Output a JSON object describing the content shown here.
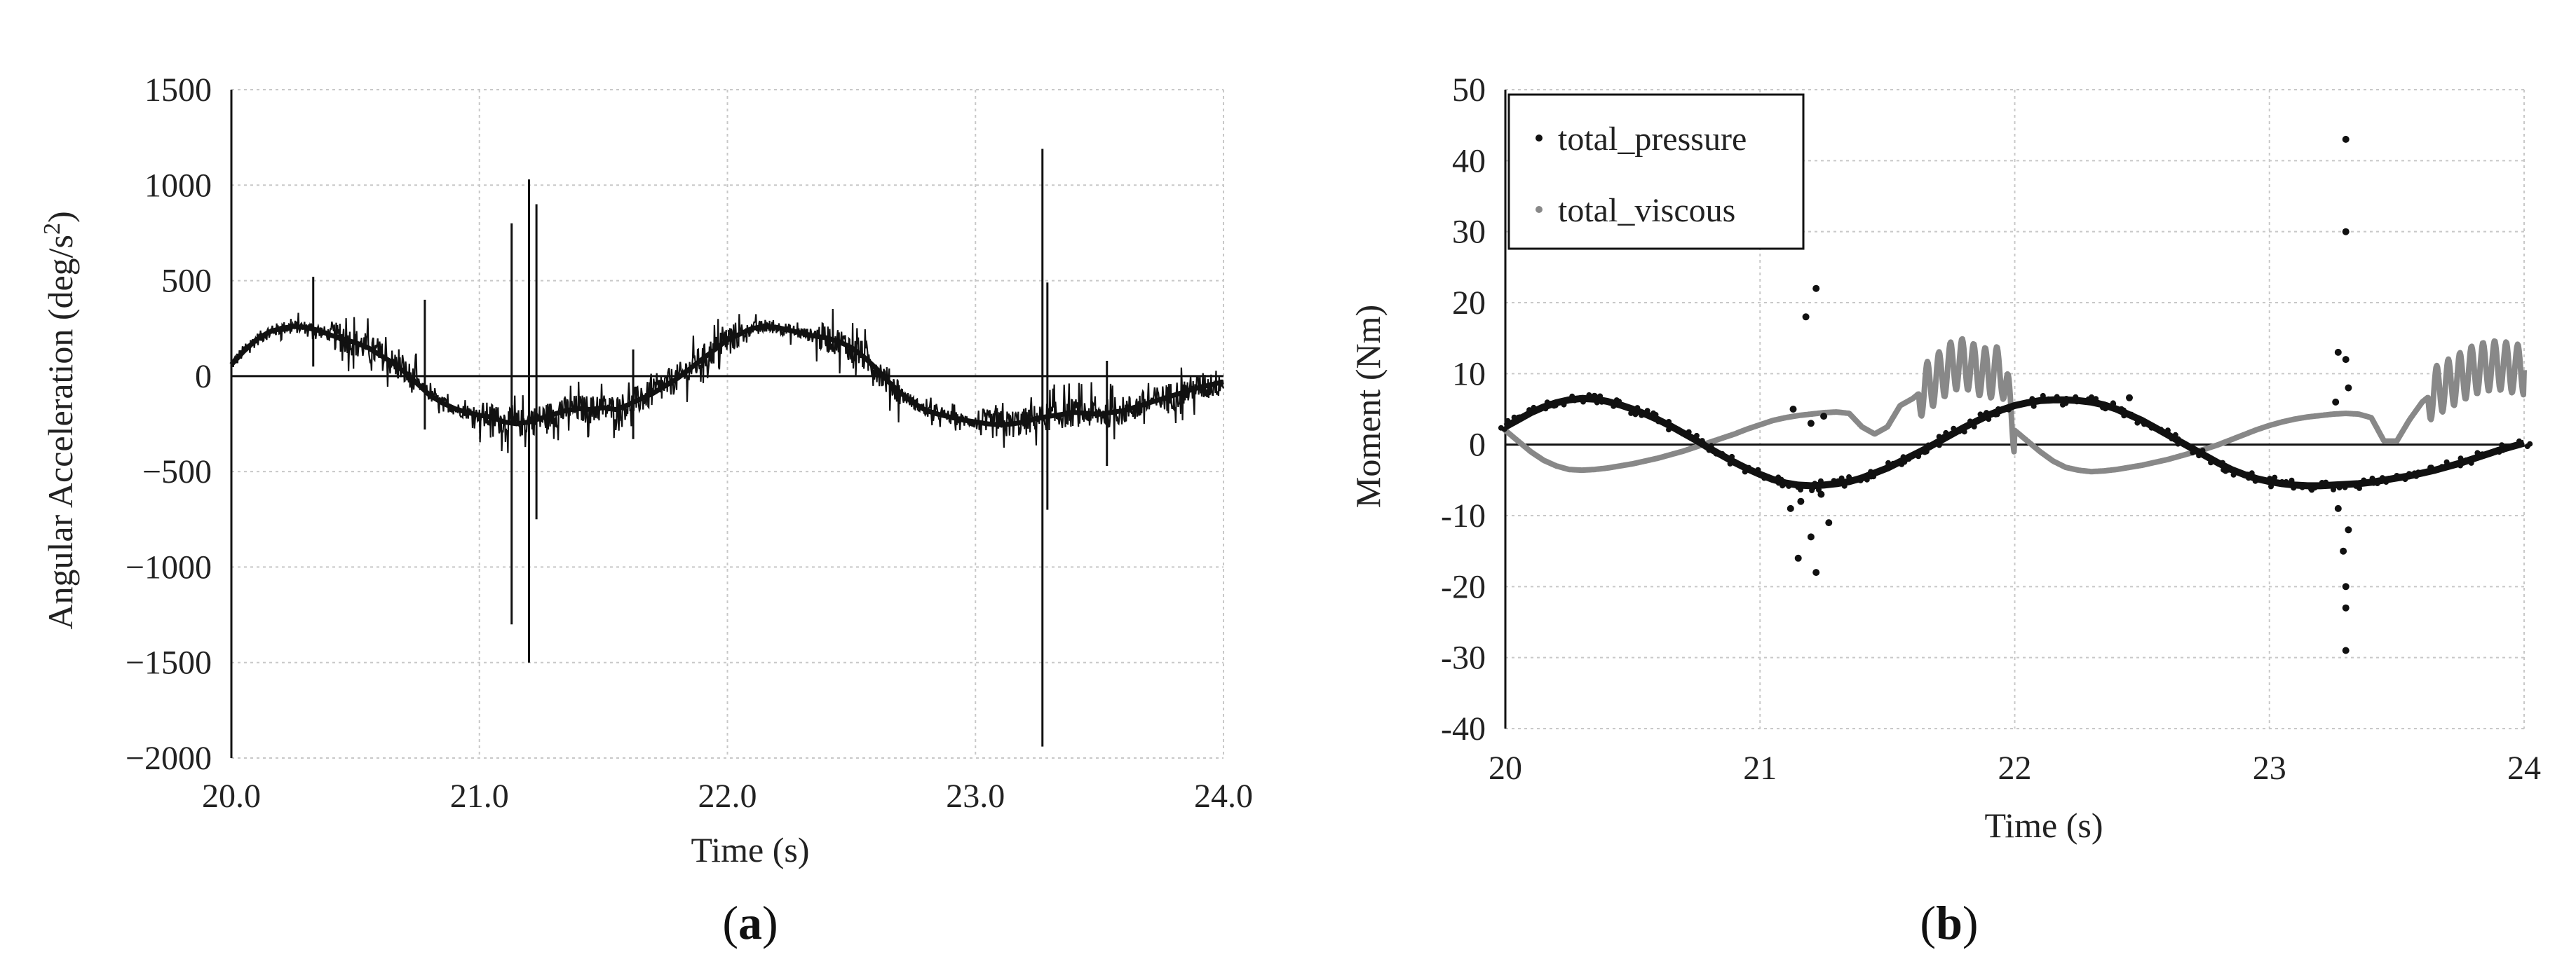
{
  "chart_data": [
    {
      "id": "a",
      "type": "line",
      "panel_label": "(a)",
      "panel_letter": "a",
      "xlabel": "Time (s)",
      "ylabel": "Angular Acceleration (deg/s²)",
      "xlim": [
        20.0,
        24.0
      ],
      "ylim": [
        -2000,
        1500
      ],
      "xticks": [
        20.0,
        21.0,
        22.0,
        23.0,
        24.0
      ],
      "xtick_labels": [
        "20.0",
        "21.0",
        "22.0",
        "23.0",
        "24.0"
      ],
      "yticks": [
        1500,
        1000,
        500,
        0,
        -500,
        -1000,
        -1500,
        -2000
      ],
      "ytick_labels": [
        "1500",
        "1000",
        "500",
        "0",
        "−500",
        "−1000",
        "−1500",
        "−2000"
      ],
      "grid": true,
      "series": [
        {
          "name": "angular_acceleration",
          "color": "#111111",
          "x": [
            20.0,
            20.05,
            20.1,
            20.15,
            20.2,
            20.25,
            20.3,
            20.35,
            20.4,
            20.45,
            20.5,
            20.55,
            20.6,
            20.65,
            20.7,
            20.75,
            20.8,
            20.85,
            20.9,
            20.95,
            21.0,
            21.05,
            21.1,
            21.15,
            21.2,
            21.25,
            21.3,
            21.35,
            21.4,
            21.45,
            21.5,
            21.55,
            21.6,
            21.65,
            21.7,
            21.75,
            21.8,
            21.85,
            21.9,
            21.95,
            22.0,
            22.05,
            22.1,
            22.15,
            22.2,
            22.25,
            22.3,
            22.35,
            22.4,
            22.45,
            22.5,
            22.55,
            22.6,
            22.65,
            22.7,
            22.75,
            22.8,
            22.85,
            22.9,
            22.95,
            23.0,
            23.05,
            23.1,
            23.15,
            23.2,
            23.25,
            23.3,
            23.35,
            23.4,
            23.45,
            23.5,
            23.55,
            23.6,
            23.65,
            23.7,
            23.75,
            23.8,
            23.85,
            23.9,
            23.95,
            24.0
          ],
          "values": [
            60,
            130,
            190,
            230,
            250,
            260,
            255,
            240,
            215,
            195,
            175,
            150,
            110,
            70,
            20,
            -40,
            -100,
            -140,
            -170,
            -190,
            -205,
            -215,
            -240,
            -250,
            -240,
            -220,
            -200,
            -180,
            -170,
            -175,
            -165,
            -175,
            -150,
            -120,
            -90,
            -50,
            -10,
            40,
            90,
            140,
            190,
            220,
            250,
            260,
            255,
            240,
            225,
            210,
            200,
            180,
            150,
            100,
            40,
            -30,
            -90,
            -140,
            -180,
            -200,
            -215,
            -230,
            -240,
            -250,
            -255,
            -250,
            -240,
            -220,
            -210,
            -200,
            -190,
            -195,
            -200,
            -190,
            -180,
            -160,
            -140,
            -120,
            -100,
            -80,
            -60,
            -45,
            -30
          ]
        }
      ],
      "spikes": [
        {
          "x": 20.0,
          "ymin": -2000,
          "ymax": 1500
        },
        {
          "x": 20.33,
          "ymin": 50,
          "ymax": 520
        },
        {
          "x": 20.78,
          "ymin": -280,
          "ymax": 400
        },
        {
          "x": 21.13,
          "ymin": -1300,
          "ymax": 800
        },
        {
          "x": 21.2,
          "ymin": -1500,
          "ymax": 1030
        },
        {
          "x": 21.23,
          "ymin": -750,
          "ymax": 900
        },
        {
          "x": 21.62,
          "ymin": -330,
          "ymax": 140
        },
        {
          "x": 23.27,
          "ymin": -1940,
          "ymax": 1190
        },
        {
          "x": 23.29,
          "ymin": -700,
          "ymax": 490
        },
        {
          "x": 23.53,
          "ymin": -470,
          "ymax": 80
        }
      ]
    },
    {
      "id": "b",
      "type": "scatter",
      "panel_label": "(b)",
      "panel_letter": "b",
      "xlabel": "Time (s)",
      "ylabel": "Moment (Nm)",
      "xlim": [
        20,
        24
      ],
      "ylim": [
        -40,
        50
      ],
      "xticks": [
        20,
        21,
        22,
        23,
        24
      ],
      "xtick_labels": [
        "20",
        "21",
        "22",
        "23",
        "24"
      ],
      "yticks": [
        50,
        40,
        30,
        20,
        10,
        0,
        -10,
        -20,
        -30,
        -40
      ],
      "ytick_labels": [
        "50",
        "40",
        "30",
        "20",
        "10",
        "0",
        "-10",
        "-20",
        "-30",
        "-40"
      ],
      "grid": true,
      "legend_position": "top-left",
      "series": [
        {
          "name": "total_pressure",
          "color": "#111111",
          "x": [
            20.0,
            20.05,
            20.1,
            20.15,
            20.2,
            20.25,
            20.3,
            20.35,
            20.4,
            20.45,
            20.5,
            20.55,
            20.6,
            20.65,
            20.7,
            20.75,
            20.8,
            20.85,
            20.9,
            20.95,
            21.0,
            21.05,
            21.1,
            21.15,
            21.2,
            21.25,
            21.3,
            21.35,
            21.4,
            21.45,
            21.5,
            21.55,
            21.6,
            21.65,
            21.7,
            21.75,
            21.8,
            21.85,
            21.9,
            21.95,
            22.0,
            22.05,
            22.1,
            22.15,
            22.2,
            22.25,
            22.3,
            22.35,
            22.4,
            22.45,
            22.5,
            22.55,
            22.6,
            22.65,
            22.7,
            22.75,
            22.8,
            22.85,
            22.9,
            22.95,
            23.0,
            23.05,
            23.1,
            23.15,
            23.2,
            23.25,
            23.3,
            23.35,
            23.4,
            23.45,
            23.5,
            23.55,
            23.6,
            23.65,
            23.7,
            23.75,
            23.8,
            23.85,
            23.9,
            23.95,
            24.0
          ],
          "values": [
            2.5,
            3.5,
            4.5,
            5.3,
            5.9,
            6.3,
            6.5,
            6.4,
            6.1,
            5.6,
            5.0,
            4.3,
            3.5,
            2.6,
            1.6,
            0.6,
            -0.5,
            -1.5,
            -2.5,
            -3.4,
            -4.2,
            -4.9,
            -5.4,
            -5.7,
            -5.8,
            -5.7,
            -5.5,
            -5.2,
            -4.7,
            -4.0,
            -3.3,
            -2.4,
            -1.5,
            -0.6,
            0.4,
            1.4,
            2.4,
            3.3,
            4.2,
            4.9,
            5.5,
            5.9,
            6.2,
            6.3,
            6.3,
            6.2,
            6.0,
            5.6,
            5.0,
            4.2,
            3.4,
            2.4,
            1.4,
            0.4,
            -0.6,
            -1.6,
            -2.6,
            -3.5,
            -4.2,
            -4.8,
            -5.2,
            -5.5,
            -5.7,
            -5.8,
            -5.8,
            -5.7,
            -5.6,
            -5.5,
            -5.3,
            -5.0,
            -4.7,
            -4.4,
            -4.0,
            -3.6,
            -3.1,
            -2.6,
            -2.0,
            -1.4,
            -0.8,
            -0.3,
            0.2
          ]
        },
        {
          "name": "total_viscous",
          "color": "#888888",
          "x": [
            20.0,
            20.05,
            20.1,
            20.15,
            20.2,
            20.25,
            20.3,
            20.35,
            20.4,
            20.45,
            20.5,
            20.55,
            20.6,
            20.65,
            20.7,
            20.75,
            20.8,
            20.85,
            20.9,
            20.95,
            21.0,
            21.05,
            21.1,
            21.15,
            21.2,
            21.25,
            21.3,
            21.35,
            21.4,
            21.45,
            21.5,
            21.55,
            21.6,
            21.65,
            21.7,
            21.75,
            21.8,
            21.85,
            21.9,
            21.95,
            22.0,
            22.05,
            22.1,
            22.15,
            22.2,
            22.25,
            22.3,
            22.35,
            22.4,
            22.45,
            22.5,
            22.55,
            22.6,
            22.65,
            22.7,
            22.75,
            22.8,
            22.85,
            22.9,
            22.95,
            23.0,
            23.05,
            23.1,
            23.15,
            23.2,
            23.25,
            23.3,
            23.35,
            23.4,
            23.45,
            23.5,
            23.55,
            23.6,
            23.65,
            23.7,
            23.75,
            23.8,
            23.85,
            23.9,
            23.95,
            24.0
          ],
          "values": [
            2.0,
            0.5,
            -1.0,
            -2.2,
            -3.0,
            -3.5,
            -3.6,
            -3.5,
            -3.3,
            -3.0,
            -2.7,
            -2.3,
            -1.9,
            -1.4,
            -0.9,
            -0.3,
            0.3,
            0.9,
            1.5,
            2.2,
            2.8,
            3.4,
            3.8,
            4.1,
            4.3,
            4.5,
            4.6,
            4.4,
            2.5,
            1.5,
            2.5,
            5.5,
            6.5,
            8.0,
            9.5,
            11.0,
            11.5,
            10.5,
            10.0,
            10.5,
            2.0,
            0.5,
            -1.0,
            -2.3,
            -3.2,
            -3.6,
            -3.8,
            -3.7,
            -3.5,
            -3.2,
            -2.9,
            -2.5,
            -2.1,
            -1.6,
            -1.1,
            -0.6,
            0.0,
            0.7,
            1.4,
            2.1,
            2.7,
            3.2,
            3.6,
            3.9,
            4.1,
            4.3,
            4.4,
            4.3,
            3.8,
            0.5,
            0.5,
            3.5,
            6.0,
            7.5,
            8.5,
            9.5,
            10.5,
            11.0,
            11.2,
            10.8,
            10.5
          ]
        }
      ],
      "outliers": [
        {
          "x": 21.18,
          "y": 18
        },
        {
          "x": 21.22,
          "y": 22
        },
        {
          "x": 21.13,
          "y": 5
        },
        {
          "x": 21.2,
          "y": 3
        },
        {
          "x": 21.25,
          "y": 4
        },
        {
          "x": 21.15,
          "y": -16
        },
        {
          "x": 21.22,
          "y": -18
        },
        {
          "x": 21.12,
          "y": -9
        },
        {
          "x": 21.27,
          "y": -11
        },
        {
          "x": 21.2,
          "y": -13
        },
        {
          "x": 21.24,
          "y": -7
        },
        {
          "x": 21.16,
          "y": -8
        },
        {
          "x": 23.3,
          "y": 43
        },
        {
          "x": 23.3,
          "y": 30
        },
        {
          "x": 23.27,
          "y": 13
        },
        {
          "x": 23.3,
          "y": 12
        },
        {
          "x": 23.31,
          "y": 8
        },
        {
          "x": 23.26,
          "y": 6
        },
        {
          "x": 23.29,
          "y": -15
        },
        {
          "x": 23.3,
          "y": -20
        },
        {
          "x": 23.3,
          "y": -23
        },
        {
          "x": 23.3,
          "y": -29
        },
        {
          "x": 23.27,
          "y": -9
        },
        {
          "x": 23.31,
          "y": -12
        },
        {
          "x": 20.35,
          "y": 6.8
        },
        {
          "x": 22.45,
          "y": 6.6
        }
      ]
    }
  ]
}
